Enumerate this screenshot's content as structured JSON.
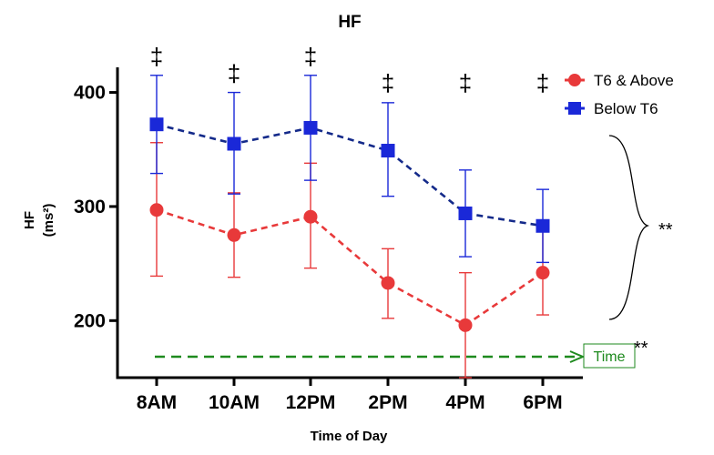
{
  "chart_data": {
    "type": "line",
    "title": "HF",
    "xlabel": "Time of Day",
    "ylabel": "HF",
    "ylabel_unit": "(ms²)",
    "categories": [
      "8AM",
      "10AM",
      "12PM",
      "2PM",
      "4PM",
      "6PM"
    ],
    "yticks": [
      200,
      300,
      400
    ],
    "ylim": [
      150,
      422
    ],
    "grid": false,
    "legend_position": "top-right",
    "series": [
      {
        "name": "T6 & Above",
        "color": "#e8393a",
        "marker": "circle",
        "line_style": "dashed",
        "values": [
          297,
          275,
          291,
          233,
          196,
          242
        ],
        "err_low": [
          239,
          238,
          246,
          202,
          150,
          205
        ],
        "err_high": [
          356,
          312,
          338,
          263,
          242,
          280
        ]
      },
      {
        "name": "Below T6",
        "color": "#1a28d8",
        "line_color": "#142a8a",
        "marker": "square",
        "line_style": "dashed",
        "values": [
          372,
          355,
          369,
          349,
          294,
          283
        ],
        "err_low": [
          329,
          311,
          323,
          309,
          256,
          251
        ],
        "err_high": [
          415,
          400,
          415,
          391,
          332,
          315
        ]
      }
    ],
    "annotations": {
      "point_marker": "‡",
      "group_significance": "**",
      "time_label": "Time",
      "time_significance": "**",
      "time_arrow_color": "#1e8a1e"
    }
  }
}
